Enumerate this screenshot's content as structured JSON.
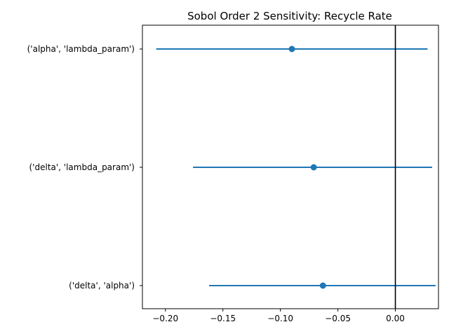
{
  "chart_data": {
    "type": "scatter",
    "title": "Sobol Order 2 Sensitivity: Recycle Rate",
    "xlabel": "",
    "ylabel": "",
    "categories": [
      "('alpha', 'lambda_param')",
      "('delta', 'lambda_param')",
      "('delta', 'alpha')"
    ],
    "series": [
      {
        "values": [
          -0.09,
          -0.071,
          -0.063
        ],
        "ci_low": [
          -0.208,
          -0.176,
          -0.162
        ],
        "ci_high": [
          0.028,
          0.032,
          0.035
        ]
      }
    ],
    "xlim": [
      -0.22,
      0.0375
    ],
    "xticks": [
      -0.2,
      -0.15,
      -0.1,
      -0.05,
      0.0
    ],
    "xtick_labels": [
      "−0.20",
      "−0.15",
      "−0.10",
      "−0.05",
      "0.00"
    ],
    "reference_line_x": 0.0,
    "grid": false,
    "colors": {
      "series": "#1f77b4",
      "reference_line": "#000000",
      "axes": "#000000"
    }
  }
}
